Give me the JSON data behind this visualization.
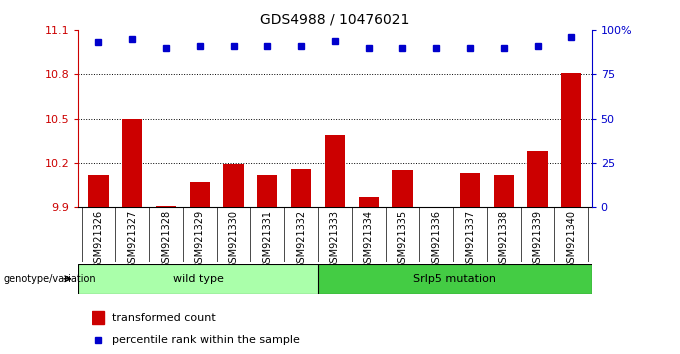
{
  "title": "GDS4988 / 10476021",
  "samples": [
    "GSM921326",
    "GSM921327",
    "GSM921328",
    "GSM921329",
    "GSM921330",
    "GSM921331",
    "GSM921332",
    "GSM921333",
    "GSM921334",
    "GSM921335",
    "GSM921336",
    "GSM921337",
    "GSM921338",
    "GSM921339",
    "GSM921340"
  ],
  "bar_values": [
    10.12,
    10.5,
    9.91,
    10.07,
    10.19,
    10.12,
    10.16,
    10.39,
    9.97,
    10.15,
    9.9,
    10.13,
    10.12,
    10.28,
    10.81
  ],
  "percentile_values": [
    93,
    95,
    90,
    91,
    91,
    91,
    91,
    94,
    90,
    90,
    90,
    90,
    90,
    91,
    96
  ],
  "bar_color": "#cc0000",
  "dot_color": "#0000cc",
  "ylim_left": [
    9.9,
    11.1
  ],
  "ylim_right": [
    0,
    100
  ],
  "yticks_left": [
    9.9,
    10.2,
    10.5,
    10.8,
    11.1
  ],
  "yticks_right": [
    0,
    25,
    50,
    75,
    100
  ],
  "ytick_labels_right": [
    "0",
    "25",
    "50",
    "75",
    "100%"
  ],
  "grid_values": [
    10.2,
    10.5,
    10.8
  ],
  "wild_type_count": 7,
  "mutation_count": 8,
  "wild_type_label": "wild type",
  "mutation_label": "Srlp5 mutation",
  "genotype_label": "genotype/variation",
  "legend_bar_label": "transformed count",
  "legend_dot_label": "percentile rank within the sample",
  "bg_color": "#d8d8d8",
  "wild_type_color": "#aaffaa",
  "mutation_color": "#44cc44",
  "xtick_bg_color": "#c8c8c8"
}
